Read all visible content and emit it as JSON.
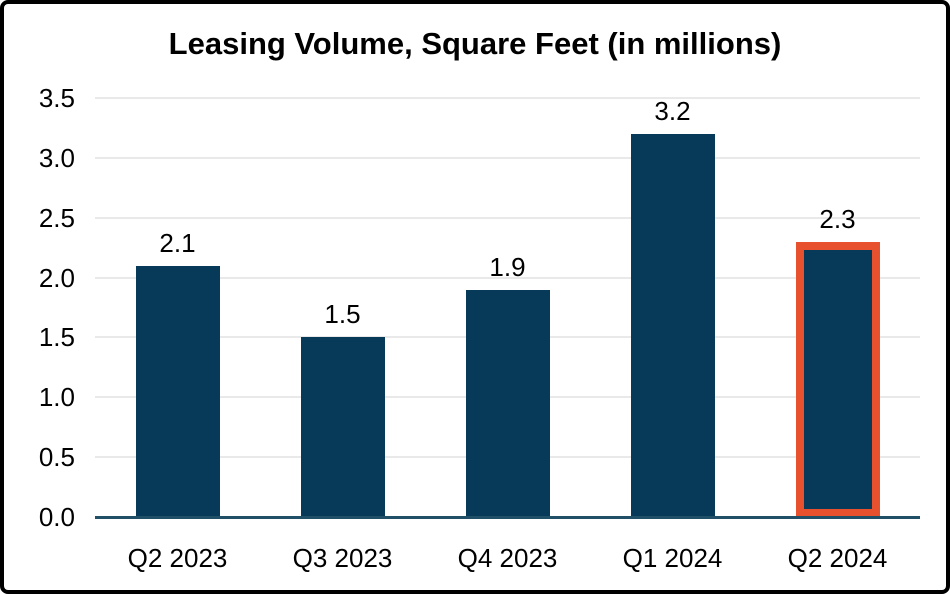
{
  "chart_data": {
    "type": "bar",
    "title": "Leasing Volume, Square Feet (in millions)",
    "categories": [
      "Q2 2023",
      "Q3 2023",
      "Q4 2023",
      "Q1 2024",
      "Q2 2024"
    ],
    "values": [
      2.1,
      1.5,
      1.9,
      3.2,
      2.3
    ],
    "data_labels": [
      "2.1",
      "1.5",
      "1.9",
      "3.2",
      "2.3"
    ],
    "xlabel": "",
    "ylabel": "",
    "ylim": [
      0,
      3.5
    ],
    "ytick_step": 0.5,
    "ytick_labels": [
      "0.0",
      "0.5",
      "1.0",
      "1.5",
      "2.0",
      "2.5",
      "3.0",
      "3.5"
    ],
    "grid": true,
    "legend": "none",
    "highlighted_category": "Q2 2024",
    "highlight_index": 4,
    "colors": {
      "bar": "#073A58",
      "highlight_outline": "#E8512E",
      "axis_line": "#1F5068",
      "gridline": "#E9E9E9",
      "text": "#000000",
      "background": "#FFFFFF",
      "frame_border": "#000000"
    }
  }
}
